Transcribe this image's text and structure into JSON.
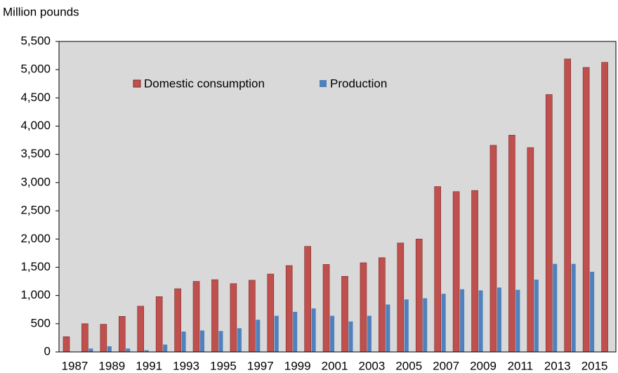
{
  "chart_data": {
    "type": "bar",
    "y_axis_label": "Million pounds",
    "categories": [
      "1987",
      null,
      "1989",
      null,
      "1991",
      null,
      "1993",
      null,
      "1995",
      null,
      "1997",
      null,
      "1999",
      null,
      "2001",
      null,
      "2003",
      null,
      "2005",
      null,
      "2007",
      null,
      "2009",
      null,
      "2011",
      null,
      "2013",
      null,
      "2015",
      null
    ],
    "series": [
      {
        "name": "Domestic consumption",
        "color": "#c0504d",
        "values": [
          270,
          500,
          490,
          630,
          810,
          980,
          1120,
          1250,
          1280,
          1210,
          1270,
          1380,
          1530,
          1870,
          1550,
          1340,
          1580,
          1670,
          1930,
          2000,
          2930,
          2840,
          2860,
          3660,
          3840,
          3620,
          4560,
          5190,
          5040,
          5130
        ]
      },
      {
        "name": "Production",
        "color": "#4f81bd",
        "values": [
          0,
          60,
          100,
          60,
          30,
          130,
          360,
          380,
          370,
          420,
          570,
          640,
          710,
          770,
          640,
          540,
          640,
          840,
          930,
          950,
          1030,
          1110,
          1090,
          1140,
          1100,
          1280,
          1560,
          1560,
          1420,
          null
        ]
      }
    ],
    "ylim": [
      0,
      5500
    ],
    "yticks": [
      0,
      500,
      {
        "value": 1000,
        "label": "1,000"
      },
      {
        "value": 1500,
        "label": "1,500"
      },
      {
        "value": 2000,
        "label": "2,000"
      },
      {
        "value": 2500,
        "label": "2,500"
      },
      {
        "value": 3000,
        "label": "3,000"
      },
      {
        "value": 3500,
        "label": "3,500"
      },
      {
        "value": 4000,
        "label": "4,000"
      },
      {
        "value": 4500,
        "label": "4,500"
      },
      {
        "value": 5000,
        "label": "5,000"
      },
      {
        "value": 5500,
        "label": "5,500"
      }
    ],
    "grid": false,
    "legend": "top-left",
    "background": "#d9d9d9"
  }
}
